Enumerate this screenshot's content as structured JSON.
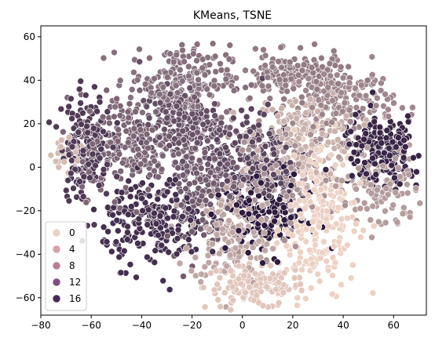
{
  "chart_data": {
    "type": "scatter",
    "title": "KMeans, TSNE",
    "xlabel": "",
    "ylabel": "",
    "xlim": [
      -80,
      73
    ],
    "ylim": [
      -68,
      65
    ],
    "x_ticks": [
      -80,
      -60,
      -40,
      -20,
      0,
      20,
      40,
      60
    ],
    "y_ticks": [
      -60,
      -40,
      -20,
      0,
      20,
      40,
      60
    ],
    "grid": false,
    "legend_position": "lower-left",
    "hue_scale": {
      "low_color": "#ecd1c3",
      "high_color": "#2e1a3e",
      "min": 0,
      "max": 17
    },
    "legend_entries": [
      {
        "label": "0",
        "color": "#ecd1c3"
      },
      {
        "label": "4",
        "color": "#d4a3a8"
      },
      {
        "label": "8",
        "color": "#ba7b96"
      },
      {
        "label": "12",
        "color": "#7e4d82"
      },
      {
        "label": "16",
        "color": "#452a5a"
      }
    ],
    "clusters": [
      {
        "label": 0,
        "cx": 30,
        "cy": -22,
        "sx": 8,
        "sy": 18,
        "n": 260
      },
      {
        "label": 1,
        "cx": 5,
        "cy": -55,
        "sx": 10,
        "sy": 5,
        "n": 150
      },
      {
        "label": 2,
        "cx": -70,
        "cy": 4,
        "sx": 4,
        "sy": 4,
        "n": 30
      },
      {
        "label": 3,
        "cx": 25,
        "cy": 15,
        "sx": 10,
        "sy": 10,
        "n": 180
      },
      {
        "label": 4,
        "cx": -5,
        "cy": -30,
        "sx": 8,
        "sy": 12,
        "n": 170
      },
      {
        "label": 5,
        "cx": 55,
        "cy": -10,
        "sx": 8,
        "sy": 10,
        "n": 120
      },
      {
        "label": 6,
        "cx": 15,
        "cy": -5,
        "sx": 12,
        "sy": 12,
        "n": 150
      },
      {
        "label": 7,
        "cx": 40,
        "cy": 30,
        "sx": 10,
        "sy": 8,
        "n": 180
      },
      {
        "label": 8,
        "cx": 20,
        "cy": 42,
        "sx": 10,
        "sy": 5,
        "n": 160
      },
      {
        "label": 9,
        "cx": -25,
        "cy": 40,
        "sx": 10,
        "sy": 8,
        "n": 200
      },
      {
        "label": 10,
        "cx": -45,
        "cy": 10,
        "sx": 10,
        "sy": 12,
        "n": 200
      },
      {
        "label": 11,
        "cx": -15,
        "cy": -5,
        "sx": 8,
        "sy": 15,
        "n": 220
      },
      {
        "label": 12,
        "cx": -25,
        "cy": 20,
        "sx": 8,
        "sy": 8,
        "n": 200
      },
      {
        "label": 13,
        "cx": 5,
        "cy": 5,
        "sx": 8,
        "sy": 10,
        "n": 200
      },
      {
        "label": 14,
        "cx": -62,
        "cy": 10,
        "sx": 5,
        "sy": 12,
        "n": 180
      },
      {
        "label": 15,
        "cx": -35,
        "cy": -25,
        "sx": 10,
        "sy": 10,
        "n": 240
      },
      {
        "label": 16,
        "cx": 55,
        "cy": 8,
        "sx": 8,
        "sy": 8,
        "n": 200
      },
      {
        "label": 17,
        "cx": 10,
        "cy": -20,
        "sx": 8,
        "sy": 10,
        "n": 180
      }
    ]
  }
}
